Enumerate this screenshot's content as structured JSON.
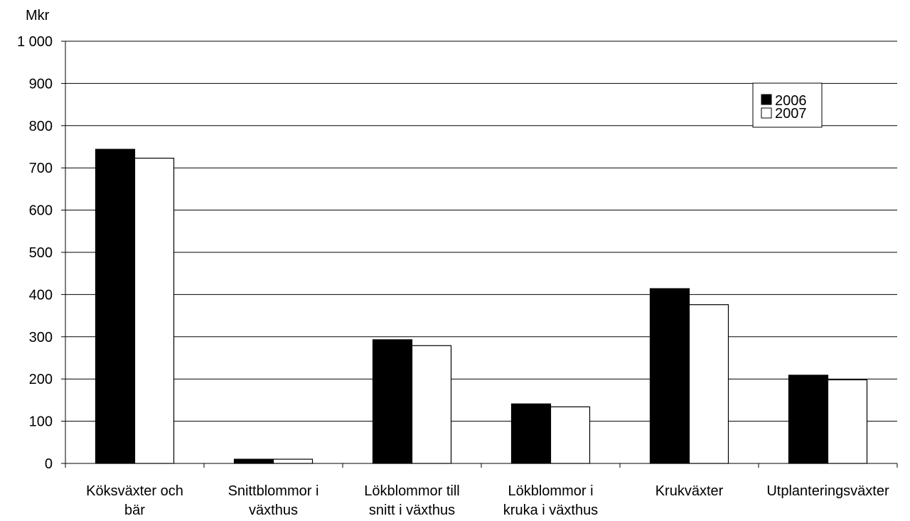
{
  "chart_data": {
    "type": "bar",
    "ylabel": "Mkr",
    "ylim": [
      0,
      1000
    ],
    "yticks": [
      "0",
      "100",
      "200",
      "300",
      "400",
      "500",
      "600",
      "700",
      "800",
      "900",
      "1 000"
    ],
    "categories": [
      [
        "Köksväxter och",
        "bär"
      ],
      [
        "Snittblommor i",
        "växthus"
      ],
      [
        "Lökblommor till",
        "snitt i växthus"
      ],
      [
        "Lökblommor i",
        "kruka i växthus"
      ],
      [
        "Krukväxter"
      ],
      [
        "Utplanteringsväxter"
      ]
    ],
    "series": [
      {
        "name": "2006",
        "color": "#000000",
        "values": [
          744,
          10,
          293,
          141,
          414,
          209
        ]
      },
      {
        "name": "2007",
        "color": "#ffffff",
        "values": [
          723,
          10,
          279,
          134,
          376,
          198
        ]
      }
    ],
    "grid": true,
    "legend_position": "top-right"
  }
}
